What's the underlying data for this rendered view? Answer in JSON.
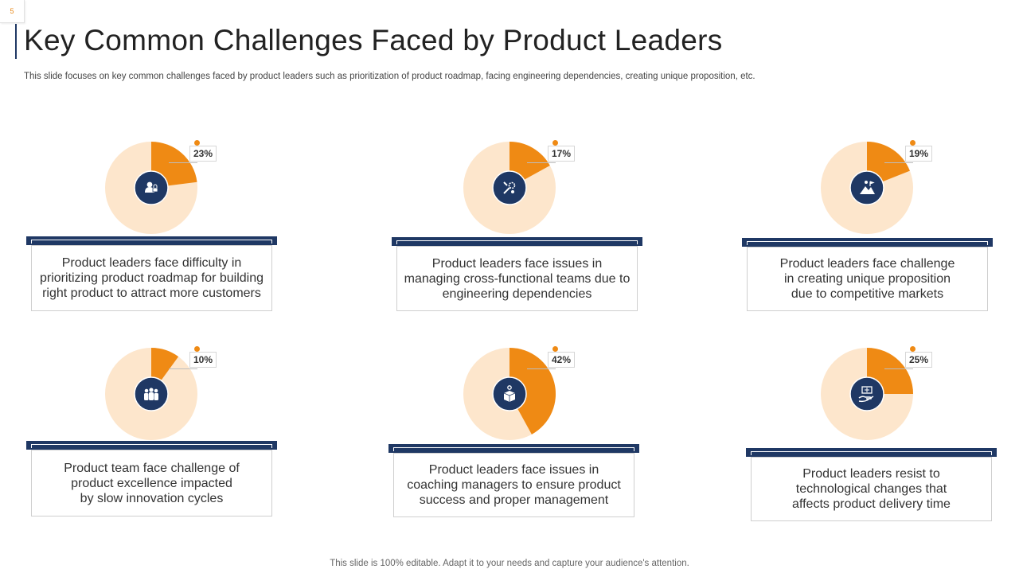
{
  "slide_number": "5",
  "title": "Key Common Challenges Faced by Product Leaders",
  "subtitle": "This slide focuses on key common challenges faced by product leaders such as prioritization of product roadmap, facing engineering dependencies, creating unique proposition, etc.",
  "footer": "This slide is 100% editable. Adapt it to your needs and capture your audience's attention.",
  "colors": {
    "accent": "#ef8a14",
    "pie_bg": "#fde6cc",
    "navy": "#1f3864"
  },
  "chart_data": [
    {
      "type": "pie",
      "value": 23,
      "label": "23%",
      "icon": "user-lock-icon",
      "text": [
        "Product leaders face difficulty in",
        "prioritizing product roadmap for building",
        "right product to attract more customers"
      ]
    },
    {
      "type": "pie",
      "value": 17,
      "label": "17%",
      "icon": "tools-gear-icon",
      "text": [
        "Product leaders face issues in",
        "managing cross-functional  teams due to",
        "engineering dependencies"
      ]
    },
    {
      "type": "pie",
      "value": 19,
      "label": "19%",
      "icon": "mountain-climber-icon",
      "text": [
        "Product leaders face challenge",
        "in creating unique proposition",
        "due to competitive markets"
      ]
    },
    {
      "type": "pie",
      "value": 10,
      "label": "10%",
      "icon": "team-group-icon",
      "text": [
        "Product team face challenge  of",
        "product excellence impacted",
        "by slow innovation cycles"
      ]
    },
    {
      "type": "pie",
      "value": 42,
      "label": "42%",
      "icon": "product-box-gear-icon",
      "text": [
        "Product leaders face issues in",
        "coaching managers to ensure product",
        "success and proper management"
      ]
    },
    {
      "type": "pie",
      "value": 25,
      "label": "25%",
      "icon": "hand-tech-icon",
      "text": [
        "Product leaders resist to",
        "technological changes that",
        "affects product delivery time"
      ]
    }
  ]
}
